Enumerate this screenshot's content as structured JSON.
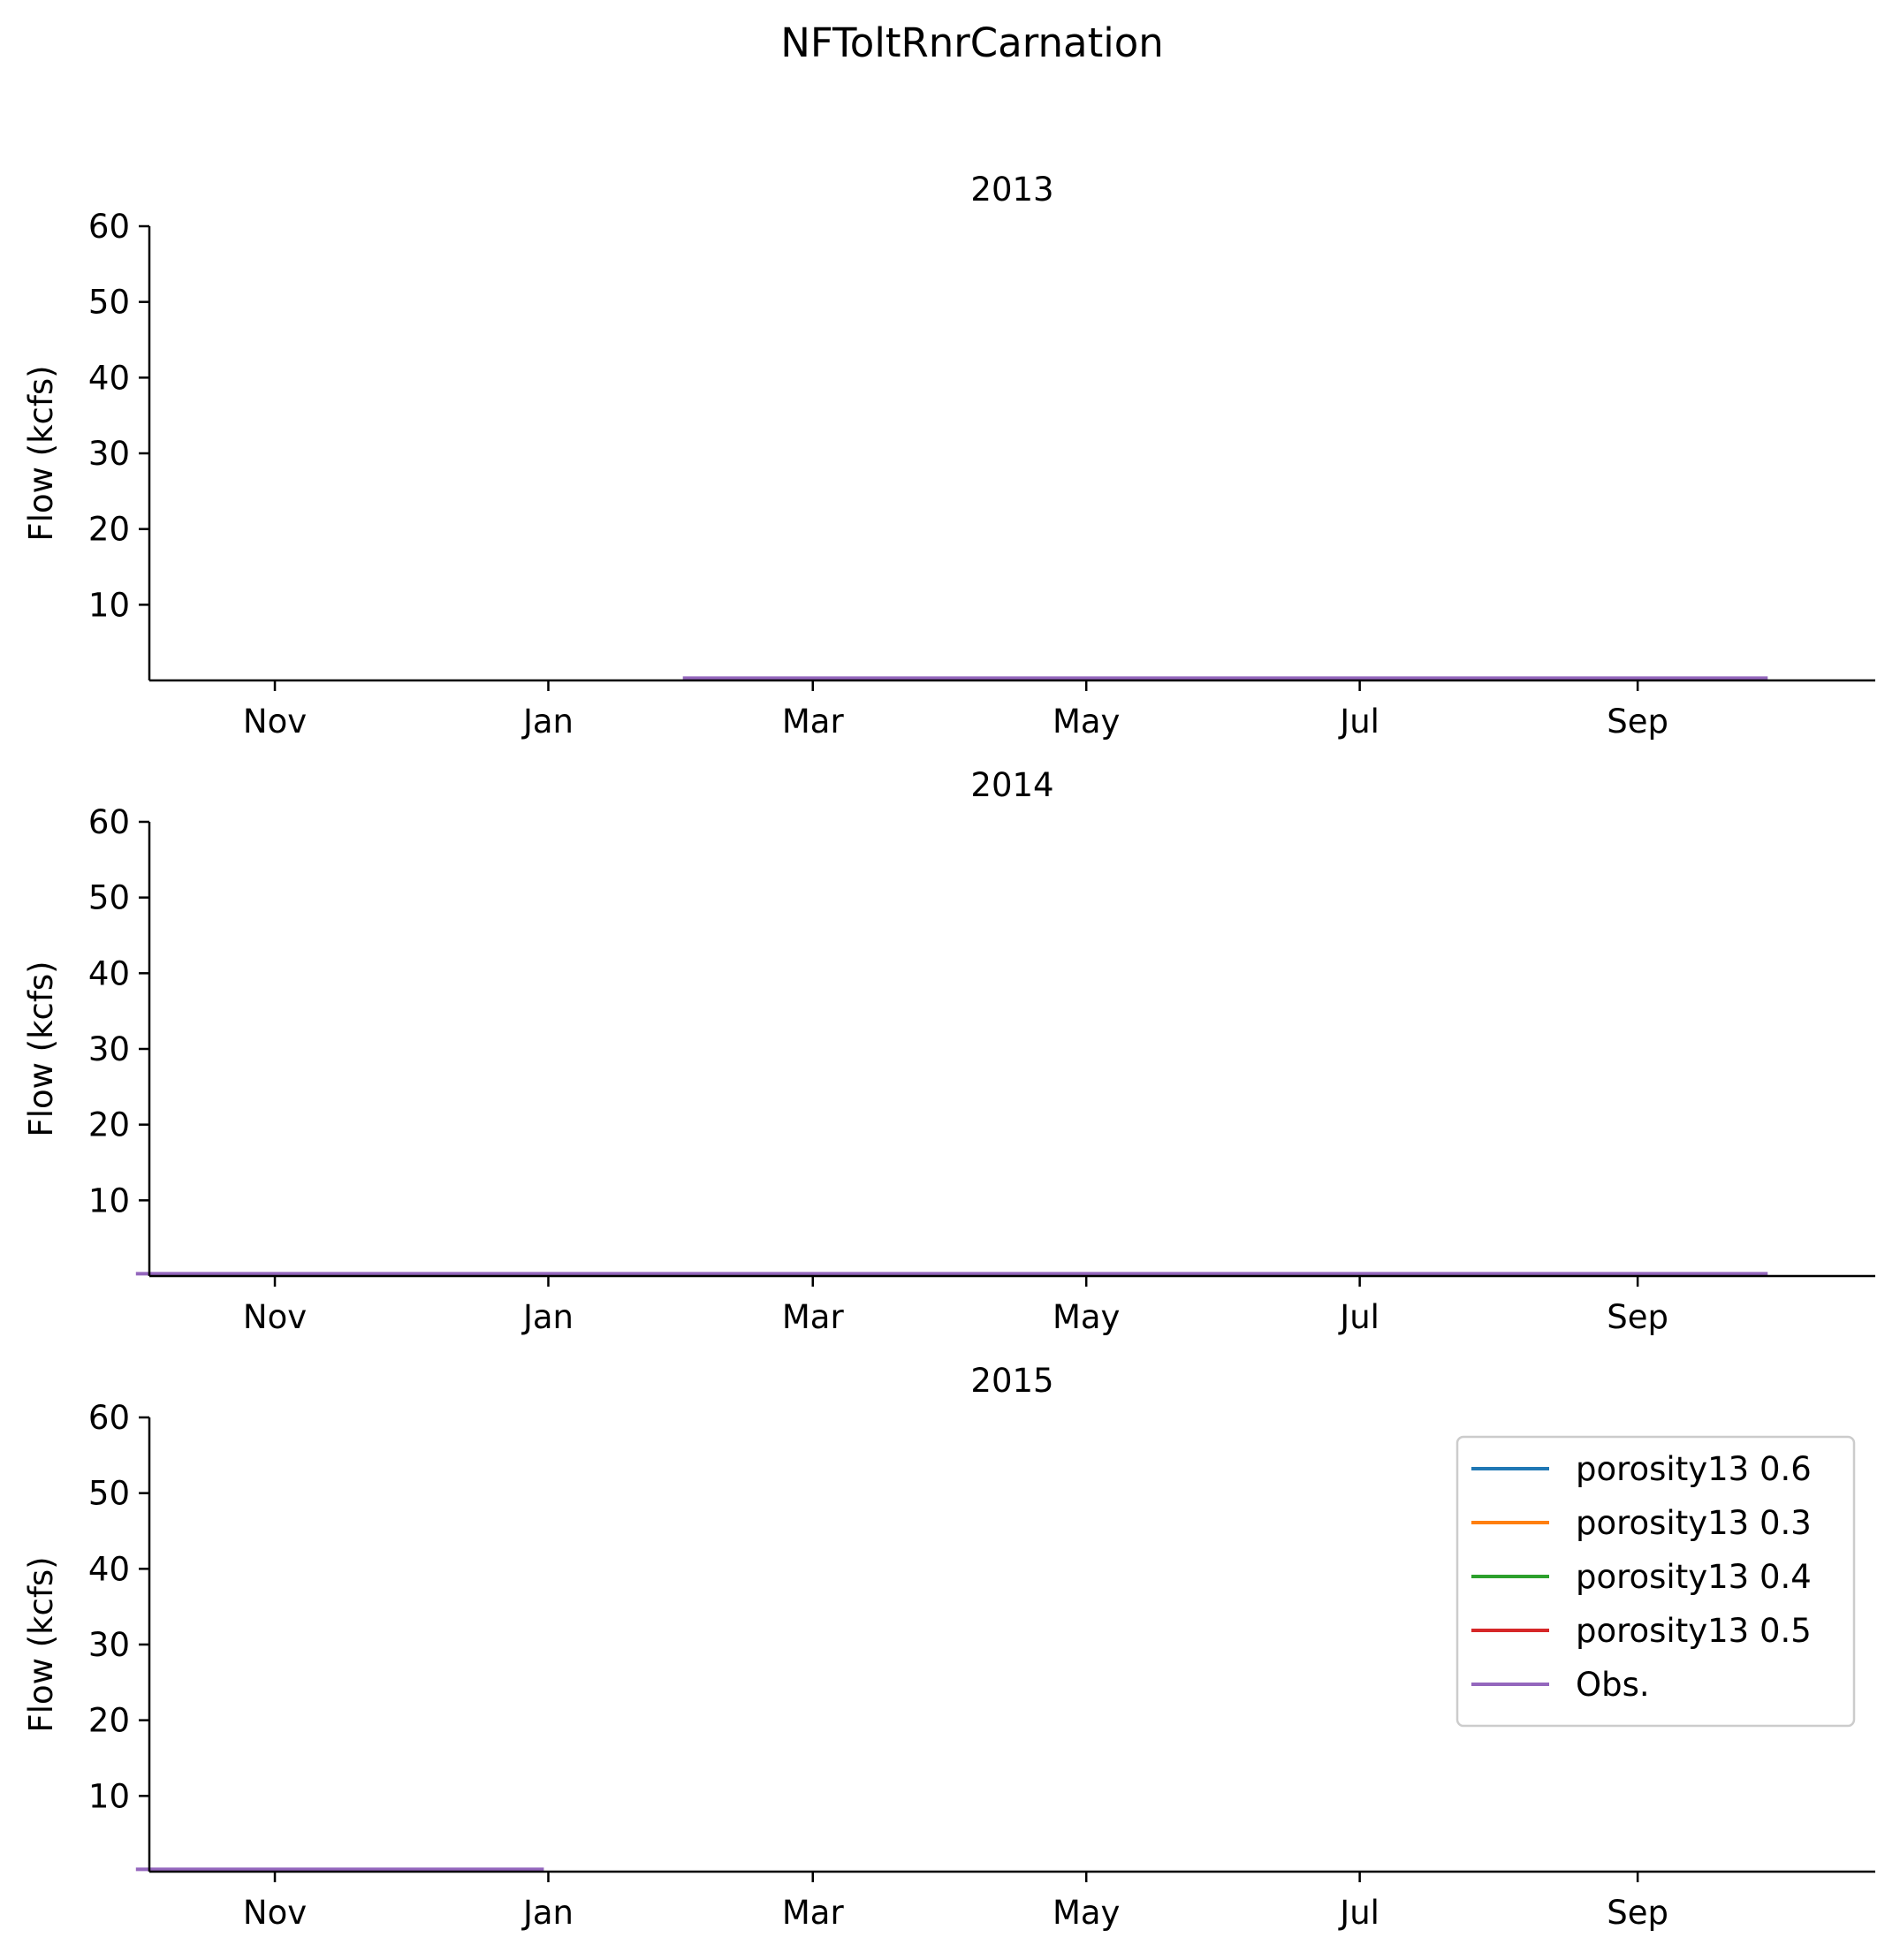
{
  "figure": {
    "suptitle": "NFToltRnrCarnation"
  },
  "chart_data": [
    {
      "type": "line",
      "title": "2013",
      "xlabel": "",
      "ylabel": "Flow (kcfs)",
      "x_axis": "date",
      "xlim": [
        "2012-10-04",
        "2013-10-24"
      ],
      "ylim": [
        0,
        60
      ],
      "yticks": [
        10,
        20,
        30,
        40,
        50,
        60
      ],
      "xtick_labels": [
        "Nov",
        "Jan",
        "Mar",
        "May",
        "Jul",
        "Sep"
      ],
      "xtick_dates": [
        "2012-11-01",
        "2013-01-01",
        "2013-03-01",
        "2013-05-01",
        "2013-07-01",
        "2013-09-01"
      ],
      "grid": false,
      "series": [
        {
          "name": "porosity13 0.6",
          "color": "#1f77b4",
          "x": [],
          "y": []
        },
        {
          "name": "porosity13 0.3",
          "color": "#ff7f0e",
          "x": [],
          "y": []
        },
        {
          "name": "porosity13 0.4",
          "color": "#2ca02c",
          "x": [],
          "y": []
        },
        {
          "name": "porosity13 0.5",
          "color": "#d62728",
          "x": [],
          "y": []
        },
        {
          "name": "Obs.",
          "color": "#9467bd",
          "x": [
            "2013-01-31",
            "2013-09-30"
          ],
          "y": [
            0.3,
            0.3
          ]
        }
      ]
    },
    {
      "type": "line",
      "title": "2014",
      "xlabel": "",
      "ylabel": "Flow (kcfs)",
      "x_axis": "date",
      "xlim": [
        "2013-10-04",
        "2014-10-24"
      ],
      "ylim": [
        0,
        60
      ],
      "yticks": [
        10,
        20,
        30,
        40,
        50,
        60
      ],
      "xtick_labels": [
        "Nov",
        "Jan",
        "Mar",
        "May",
        "Jul",
        "Sep"
      ],
      "xtick_dates": [
        "2013-11-01",
        "2014-01-01",
        "2014-03-01",
        "2014-05-01",
        "2014-07-01",
        "2014-09-01"
      ],
      "grid": false,
      "series": [
        {
          "name": "porosity13 0.6",
          "color": "#1f77b4",
          "x": [],
          "y": []
        },
        {
          "name": "porosity13 0.3",
          "color": "#ff7f0e",
          "x": [],
          "y": []
        },
        {
          "name": "porosity13 0.4",
          "color": "#2ca02c",
          "x": [],
          "y": []
        },
        {
          "name": "porosity13 0.5",
          "color": "#d62728",
          "x": [],
          "y": []
        },
        {
          "name": "Obs.",
          "color": "#9467bd",
          "x": [
            "2013-10-01",
            "2014-09-30"
          ],
          "y": [
            0.3,
            0.3
          ]
        }
      ]
    },
    {
      "type": "line",
      "title": "2015",
      "xlabel": "",
      "ylabel": "Flow (kcfs)",
      "x_axis": "date",
      "xlim": [
        "2014-10-04",
        "2015-10-24"
      ],
      "ylim": [
        0,
        60
      ],
      "yticks": [
        10,
        20,
        30,
        40,
        50,
        60
      ],
      "xtick_labels": [
        "Nov",
        "Jan",
        "Mar",
        "May",
        "Jul",
        "Sep"
      ],
      "xtick_dates": [
        "2014-11-01",
        "2015-01-01",
        "2015-03-01",
        "2015-05-01",
        "2015-07-01",
        "2015-09-01"
      ],
      "grid": false,
      "legend": "upper right",
      "series": [
        {
          "name": "porosity13 0.6",
          "color": "#1f77b4",
          "x": [],
          "y": []
        },
        {
          "name": "porosity13 0.3",
          "color": "#ff7f0e",
          "x": [],
          "y": []
        },
        {
          "name": "porosity13 0.4",
          "color": "#2ca02c",
          "x": [],
          "y": []
        },
        {
          "name": "porosity13 0.5",
          "color": "#d62728",
          "x": [],
          "y": []
        },
        {
          "name": "Obs.",
          "color": "#9467bd",
          "x": [
            "2014-10-01",
            "2014-12-31"
          ],
          "y": [
            0.3,
            0.3
          ]
        }
      ]
    }
  ]
}
